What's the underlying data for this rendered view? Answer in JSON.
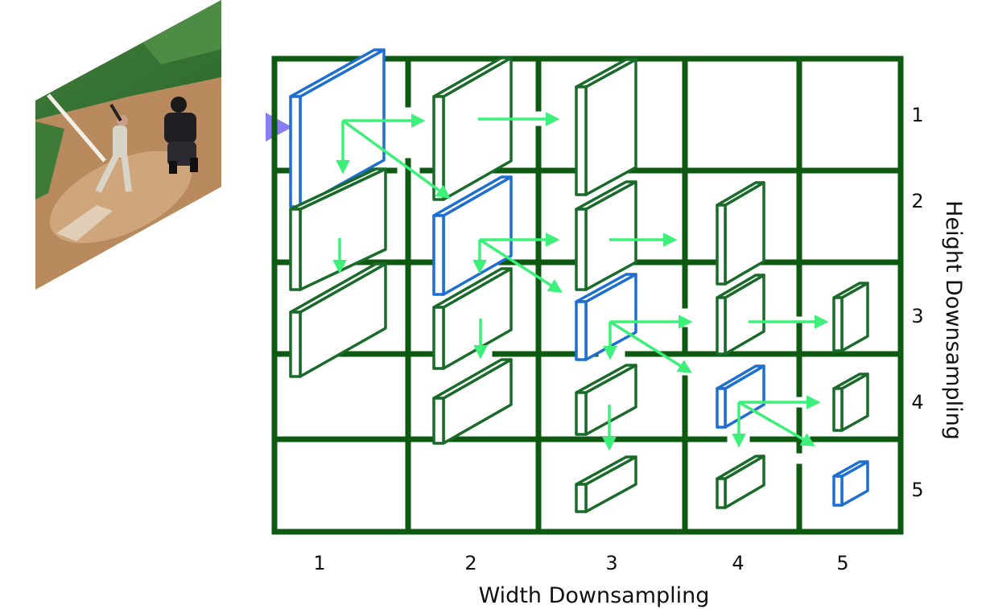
{
  "axes": {
    "x_title": "Width Downsampling",
    "y_title": "Height Downsampling",
    "x_ticks": [
      "1",
      "2",
      "3",
      "4",
      "5"
    ],
    "y_ticks": [
      "1",
      "2",
      "3",
      "4",
      "5"
    ]
  },
  "colors": {
    "grid": "#0e5a12",
    "block": "#1a6b2a",
    "active_block": "#1f6fd0",
    "arrow": "#3cf07a",
    "input_arrow_start": "#2f8cf0",
    "input_arrow_end": "#8a7cf5"
  },
  "input_image": {
    "description_icon": "photo-icon"
  },
  "blocks": [
    {
      "w": 1,
      "h": 1,
      "active": true
    },
    {
      "w": 2,
      "h": 1,
      "active": false
    },
    {
      "w": 3,
      "h": 1,
      "active": false
    },
    {
      "w": 1,
      "h": 2,
      "active": false
    },
    {
      "w": 2,
      "h": 2,
      "active": true
    },
    {
      "w": 3,
      "h": 2,
      "active": false
    },
    {
      "w": 4,
      "h": 2,
      "active": false
    },
    {
      "w": 1,
      "h": 3,
      "active": false
    },
    {
      "w": 2,
      "h": 3,
      "active": false
    },
    {
      "w": 3,
      "h": 3,
      "active": true
    },
    {
      "w": 4,
      "h": 3,
      "active": false
    },
    {
      "w": 5,
      "h": 3,
      "active": false
    },
    {
      "w": 2,
      "h": 4,
      "active": false
    },
    {
      "w": 3,
      "h": 4,
      "active": false
    },
    {
      "w": 4,
      "h": 4,
      "active": true
    },
    {
      "w": 5,
      "h": 4,
      "active": false
    },
    {
      "w": 3,
      "h": 5,
      "active": false
    },
    {
      "w": 4,
      "h": 5,
      "active": false
    },
    {
      "w": 5,
      "h": 5,
      "active": true
    }
  ]
}
